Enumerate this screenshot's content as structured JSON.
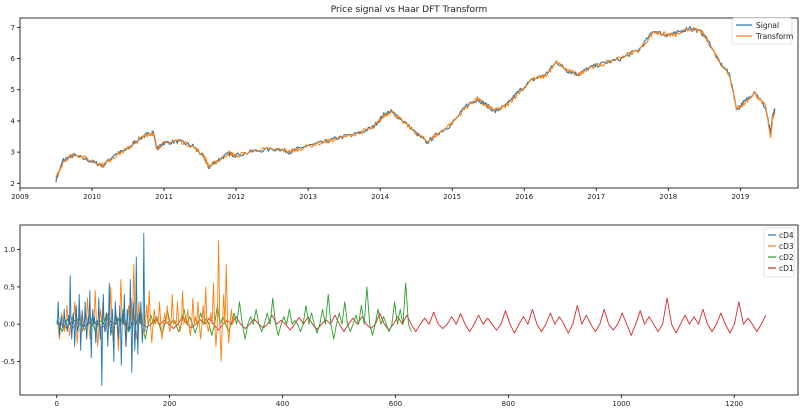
{
  "chart_data": [
    {
      "type": "line",
      "title": "Price signal vs Haar DFT Transform",
      "xlabel": "",
      "ylabel": "",
      "xlim": [
        2009.0,
        2019.8
      ],
      "ylim": [
        1.85,
        7.3
      ],
      "x_ticks": [
        "2009",
        "2010",
        "2011",
        "2012",
        "2013",
        "2014",
        "2015",
        "2016",
        "2017",
        "2018",
        "2019"
      ],
      "y_ticks": [
        "2",
        "3",
        "4",
        "5",
        "6",
        "7"
      ],
      "legend": "top-right",
      "grid": false,
      "x": [
        2009.5,
        2009.6,
        2009.75,
        2010.0,
        2010.15,
        2010.3,
        2010.5,
        2010.6,
        2010.75,
        2010.85,
        2010.9,
        2011.0,
        2011.2,
        2011.4,
        2011.55,
        2011.62,
        2011.75,
        2011.9,
        2012.0,
        2012.3,
        2012.6,
        2012.75,
        2012.9,
        2013.2,
        2013.4,
        2013.7,
        2013.9,
        2014.05,
        2014.15,
        2014.3,
        2014.5,
        2014.65,
        2014.8,
        2015.0,
        2015.2,
        2015.35,
        2015.45,
        2015.6,
        2015.75,
        2015.9,
        2016.1,
        2016.3,
        2016.45,
        2016.6,
        2016.75,
        2016.9,
        2017.1,
        2017.35,
        2017.6,
        2017.8,
        2017.95,
        2018.1,
        2018.3,
        2018.45,
        2018.55,
        2018.7,
        2018.85,
        2018.95,
        2019.05,
        2019.2,
        2019.35,
        2019.42,
        2019.45,
        2019.48
      ],
      "series": [
        {
          "name": "Signal",
          "color": "#1f77b4",
          "values": [
            2.1,
            2.75,
            2.9,
            2.7,
            2.55,
            2.9,
            3.1,
            3.35,
            3.55,
            3.65,
            3.1,
            3.3,
            3.35,
            3.2,
            2.85,
            2.5,
            2.75,
            2.95,
            2.9,
            3.05,
            3.1,
            3.0,
            3.15,
            3.3,
            3.45,
            3.6,
            3.8,
            4.2,
            4.3,
            4.05,
            3.6,
            3.3,
            3.6,
            3.9,
            4.5,
            4.7,
            4.55,
            4.3,
            4.5,
            4.9,
            5.3,
            5.5,
            5.9,
            5.6,
            5.5,
            5.7,
            5.85,
            6.0,
            6.3,
            6.9,
            6.75,
            6.8,
            7.0,
            6.85,
            6.6,
            5.9,
            5.5,
            4.35,
            4.6,
            4.95,
            4.4,
            3.6,
            4.2,
            4.35
          ]
        },
        {
          "name": "Transform",
          "color": "#ff7f0e",
          "values": [
            2.15,
            2.7,
            2.95,
            2.72,
            2.58,
            2.85,
            3.12,
            3.3,
            3.57,
            3.6,
            3.15,
            3.28,
            3.38,
            3.18,
            2.88,
            2.55,
            2.72,
            2.98,
            2.88,
            3.08,
            3.08,
            3.02,
            3.12,
            3.32,
            3.42,
            3.62,
            3.78,
            4.15,
            4.32,
            4.0,
            3.62,
            3.35,
            3.58,
            3.95,
            4.45,
            4.72,
            4.5,
            4.35,
            4.48,
            4.85,
            5.32,
            5.45,
            5.88,
            5.62,
            5.48,
            5.72,
            5.82,
            6.05,
            6.28,
            6.85,
            6.78,
            6.75,
            6.95,
            6.88,
            6.55,
            5.95,
            5.45,
            4.4,
            4.55,
            4.9,
            4.45,
            3.5,
            4.1,
            4.3
          ]
        }
      ]
    },
    {
      "type": "line",
      "title": "",
      "xlabel": "",
      "ylabel": "",
      "xlim": [
        -65,
        1313
      ],
      "ylim": [
        -0.95,
        1.33
      ],
      "x_ticks": [
        "0",
        "200",
        "400",
        "600",
        "800",
        "1000",
        "1200"
      ],
      "y_ticks": [
        "-0.5",
        "0.0",
        "0.5",
        "1.0"
      ],
      "legend": "top-right",
      "grid": false,
      "series": [
        {
          "name": "cD4",
          "color": "#1f77b4",
          "x_range": [
            0,
            157
          ],
          "values": [
            0.02,
            0.3,
            -0.15,
            0.1,
            -0.05,
            0.2,
            0.05,
            -0.1,
            0.12,
            0.65,
            -0.2,
            0.15,
            -0.3,
            0.25,
            -0.1,
            0.4,
            -0.35,
            0.18,
            -0.05,
            0.3,
            -0.2,
            0.1,
            0.45,
            -0.45,
            0.2,
            0.1,
            -0.25,
            0.05,
            0.35,
            -0.2,
            -0.82,
            0.4,
            -0.1,
            0.15,
            -0.3,
            0.55,
            -0.15,
            0.2,
            -0.5,
            0.3,
            0.1,
            -0.2,
            0.25,
            -0.55,
            0.15,
            0.4,
            -0.3,
            0.2,
            -0.1,
            0.6,
            -0.65,
            0.3,
            -0.35,
            0.9,
            -0.4,
            0.15,
            0.3,
            -0.25,
            1.22,
            -0.1
          ]
        },
        {
          "name": "cD3",
          "color": "#ff7f0e",
          "x_range": [
            0,
            314
          ],
          "values": [
            0.05,
            -0.2,
            0.15,
            -0.1,
            0.25,
            -0.15,
            0.1,
            0.3,
            -0.25,
            0.2,
            -0.1,
            0.15,
            0.35,
            -0.2,
            0.1,
            0.45,
            -0.3,
            0.2,
            0.3,
            -0.1,
            0.15,
            0.5,
            -0.25,
            0.2,
            -0.35,
            0.6,
            0.1,
            -0.3,
            0.25,
            0.35,
            0.8,
            -0.2,
            0.3,
            0.15,
            -0.15,
            0.25,
            0.45,
            -0.25,
            0.2,
            0.1,
            0.3,
            -0.2,
            0.15,
            0.25,
            -0.1,
            0.4,
            0.05,
            0.3,
            -0.1,
            0.45,
            0.1,
            0.2,
            -0.15,
            0.35,
            0.1,
            0.3,
            -0.2,
            0.25,
            0.5,
            -0.1,
            0.15,
            0.55,
            -0.3,
            1.12,
            -0.5,
            0.4,
            0.8,
            -0.25,
            0.2,
            0.1
          ]
        },
        {
          "name": "cD2",
          "color": "#2ca02c",
          "x_range": [
            0,
            628
          ],
          "values": [
            0.05,
            -0.1,
            0.08,
            -0.05,
            0.1,
            -0.08,
            0.12,
            -0.1,
            0.05,
            0.15,
            -0.12,
            0.08,
            0.2,
            -0.1,
            0.1,
            0.15,
            -0.2,
            0.12,
            0.1,
            -0.15,
            0.18,
            0.05,
            -0.1,
            0.2,
            0.1,
            -0.12,
            0.15,
            0.08,
            -0.15,
            0.25,
            0.1,
            -0.1,
            0.15,
            0.3,
            -0.2,
            0.1,
            0.2,
            -0.1,
            0.15,
            0.35,
            -0.15,
            0.1,
            0.2,
            0.05,
            -0.1,
            0.25,
            0.15,
            -0.12,
            0.2,
            0.4,
            -0.2,
            0.15,
            0.3,
            -0.1,
            0.12,
            0.25,
            0.5,
            -0.15,
            0.2,
            0.1,
            -0.1,
            0.3,
            0.2,
            0.55,
            -0.1
          ]
        },
        {
          "name": "cD1",
          "color": "#d62728",
          "x_range": [
            0,
            1256
          ],
          "values": [
            0.03,
            -0.05,
            0.05,
            -0.03,
            0.06,
            -0.05,
            0.04,
            0.08,
            -0.06,
            0.05,
            -0.04,
            0.07,
            0.05,
            -0.06,
            0.1,
            -0.05,
            0.06,
            0.08,
            -0.08,
            0.05,
            0.1,
            -0.06,
            0.07,
            -0.05,
            0.12,
            0.05,
            -0.08,
            0.09,
            0.1,
            -0.07,
            0.06,
            0.12,
            -0.1,
            0.08,
            0.1,
            -0.06,
            0.15,
            -0.08,
            0.1,
            0.12,
            -0.1,
            0.08,
            0.16,
            -0.06,
            0.1,
            0.14,
            -0.1,
            0.12,
            0.08,
            -0.08,
            0.18,
            -0.12,
            0.1,
            0.2,
            -0.1,
            0.15,
            0.1,
            -0.12,
            0.25,
            0.12,
            -0.1,
            0.2,
            -0.08,
            0.15,
            -0.15,
            0.18,
            0.1,
            -0.1,
            0.35,
            -0.12,
            0.12,
            0.1,
            0.2,
            -0.1,
            0.15,
            -0.12,
            0.3,
            0.08,
            -0.1,
            0.12
          ]
        }
      ]
    }
  ]
}
